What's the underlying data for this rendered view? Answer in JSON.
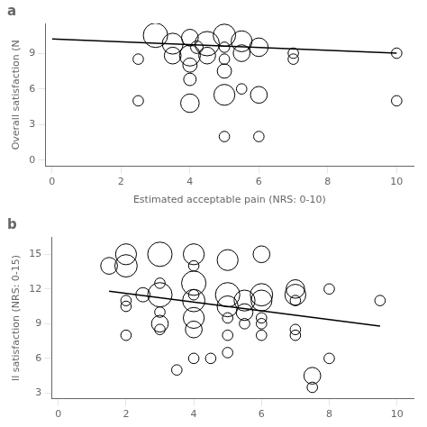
{
  "chart_data": [
    {
      "type": "scatter",
      "title": "a",
      "xlabel": "Estimated acceptable pain (NRS: 0-10)",
      "ylabel": "Overall satisfaction (N",
      "xlim": [
        -0.2,
        10.5
      ],
      "ylim": [
        -0.5,
        11.5
      ],
      "xticks": [
        0,
        2,
        4,
        6,
        8,
        10
      ],
      "yticks": [
        0,
        3,
        6,
        9
      ],
      "grid": false,
      "series": [
        {
          "type": "scatter",
          "marker": "circle",
          "color": "#000000",
          "x": [
            3.0,
            2.5,
            2.5,
            4.0,
            4.0,
            4.0,
            4.0,
            4.0,
            4.2,
            4.5,
            4.5,
            5.0,
            5.0,
            5.0,
            5.0,
            5.0,
            5.0,
            5.5,
            5.5,
            5.5,
            6.0,
            6.0,
            6.0,
            7.0,
            7.0,
            10.0,
            10.0,
            3.5,
            3.5
          ],
          "values": [
            10.5,
            8.5,
            5.0,
            10.3,
            8.8,
            8.0,
            6.8,
            4.8,
            9.5,
            9.8,
            8.8,
            10.5,
            9.5,
            8.5,
            7.5,
            5.5,
            2.0,
            10.0,
            9.0,
            6.0,
            9.5,
            5.5,
            2.0,
            9.0,
            8.5,
            9.0,
            5.0,
            9.8,
            8.8
          ],
          "sizes": [
            380,
            70,
            70,
            180,
            280,
            130,
            100,
            220,
            100,
            380,
            180,
            320,
            70,
            70,
            130,
            280,
            70,
            280,
            180,
            70,
            220,
            180,
            70,
            70,
            70,
            70,
            70,
            280,
            180
          ]
        },
        {
          "type": "line",
          "line_style": "solid",
          "color": "#000000",
          "x": [
            0,
            10
          ],
          "values": [
            10.2,
            9.0
          ]
        }
      ]
    },
    {
      "type": "scatter",
      "title": "b",
      "ylabel": "ll satisfaction (NRS: 0-15)",
      "xlim": [
        -0.2,
        10.5
      ],
      "ylim": [
        2.5,
        16.5
      ],
      "xticks": [
        0,
        2,
        4,
        6,
        8,
        10
      ],
      "yticks": [
        3,
        6,
        9,
        12,
        15
      ],
      "grid": false,
      "series": [
        {
          "type": "scatter",
          "marker": "circle",
          "color": "#000000",
          "x": [
            1.5,
            2.0,
            2.0,
            2.0,
            2.0,
            2.0,
            2.5,
            3.0,
            3.0,
            3.0,
            3.0,
            3.0,
            3.0,
            3.5,
            4.0,
            4.0,
            4.0,
            4.0,
            4.0,
            4.0,
            4.0,
            4.0,
            4.5,
            5.0,
            5.0,
            5.0,
            5.0,
            5.0,
            5.0,
            5.5,
            5.5,
            5.5,
            6.0,
            6.0,
            6.0,
            6.0,
            6.0,
            6.0,
            7.0,
            7.0,
            7.0,
            7.0,
            7.0,
            7.5,
            7.5,
            8.0,
            8.0,
            9.5
          ],
          "values": [
            14.0,
            15.0,
            14.0,
            11.0,
            10.5,
            8.0,
            11.5,
            15.0,
            12.5,
            11.5,
            10.0,
            9.0,
            8.5,
            5.0,
            15.0,
            14.0,
            12.5,
            11.5,
            11.0,
            9.5,
            8.5,
            6.0,
            6.0,
            14.5,
            11.5,
            10.5,
            9.5,
            8.0,
            6.5,
            11.0,
            10.0,
            9.0,
            15.0,
            11.5,
            11.0,
            9.5,
            9.0,
            8.0,
            12.0,
            11.5,
            11.0,
            8.5,
            8.0,
            4.5,
            3.5,
            12.0,
            6.0,
            11.0
          ],
          "sizes": [
            180,
            280,
            320,
            70,
            70,
            70,
            130,
            380,
            70,
            380,
            70,
            180,
            70,
            70,
            280,
            70,
            380,
            70,
            320,
            280,
            180,
            70,
            70,
            280,
            380,
            280,
            70,
            70,
            70,
            280,
            180,
            70,
            180,
            320,
            280,
            70,
            70,
            70,
            220,
            280,
            70,
            70,
            70,
            180,
            70,
            70,
            70,
            70
          ]
        },
        {
          "type": "line",
          "line_style": "solid",
          "color": "#000000",
          "x": [
            1.5,
            9.5
          ],
          "values": [
            11.8,
            8.8
          ]
        }
      ]
    }
  ]
}
